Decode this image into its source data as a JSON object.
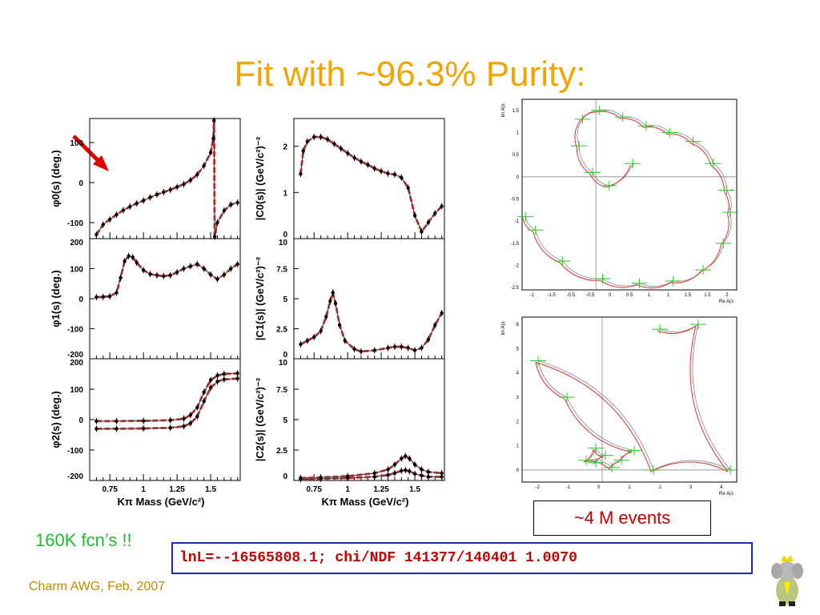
{
  "title": "Fit with ~96.3% Purity:",
  "note": "160K fcn’s !!",
  "footer": "Charm AWG, Feb, 2007",
  "result": "lnL=--16565808.1; chi/NDF 141377/140401 1.0070",
  "events": "~4 M events",
  "colors": {
    "title": "#f2a400",
    "fit": "#e03030",
    "data": "#000000",
    "argand_data": "#22cc22",
    "arrow": "#e00000"
  },
  "icons": [
    "red-arrow-icon",
    "mascot-elephant-icon"
  ],
  "chart_data": [
    {
      "type": "line",
      "panel": "phi0",
      "ylabel": "φ0(s)  (deg.)",
      "yticks": [
        "100",
        "0",
        "-100"
      ],
      "ylim": [
        -140,
        160
      ],
      "series": [
        {
          "x": [
            0.65,
            0.7,
            0.75,
            0.8,
            0.85,
            0.9,
            0.95,
            1.0,
            1.05,
            1.1,
            1.15,
            1.2,
            1.25,
            1.3,
            1.35,
            1.4,
            1.45,
            1.5,
            1.52,
            1.525,
            1.53,
            1.55,
            1.6,
            1.65,
            1.7
          ],
          "values": [
            -130,
            -105,
            -92,
            -80,
            -69,
            -60,
            -52,
            -45,
            -37,
            -30,
            -24,
            -18,
            -11,
            -4,
            6,
            20,
            42,
            75,
            110,
            155,
            -135,
            -100,
            -70,
            -55,
            -50
          ]
        }
      ]
    },
    {
      "type": "line",
      "panel": "C0",
      "ylabel": "|C0(s)|  (GeV/c²)⁻²",
      "yticks": [
        "2",
        "1",
        "0"
      ],
      "ylim": [
        0,
        2.6
      ],
      "series": [
        {
          "x": [
            0.65,
            0.67,
            0.7,
            0.75,
            0.8,
            0.85,
            0.9,
            0.95,
            1.0,
            1.05,
            1.1,
            1.15,
            1.2,
            1.25,
            1.3,
            1.35,
            1.4,
            1.45,
            1.5,
            1.55,
            1.6,
            1.65,
            1.7
          ],
          "values": [
            1.4,
            1.9,
            2.1,
            2.2,
            2.2,
            2.15,
            2.05,
            1.95,
            1.85,
            1.75,
            1.67,
            1.6,
            1.52,
            1.46,
            1.41,
            1.39,
            1.32,
            1.1,
            0.5,
            0.15,
            0.35,
            0.55,
            0.7
          ]
        }
      ]
    },
    {
      "type": "line",
      "panel": "phi1",
      "ylabel": "φ1(s)  (deg.)",
      "yticks": [
        "200",
        "100",
        "0",
        "-100",
        "-200"
      ],
      "ylim": [
        -200,
        200
      ],
      "series": [
        {
          "x": [
            0.65,
            0.7,
            0.75,
            0.8,
            0.83,
            0.86,
            0.89,
            0.92,
            0.95,
            1.0,
            1.05,
            1.1,
            1.15,
            1.2,
            1.25,
            1.3,
            1.35,
            1.4,
            1.45,
            1.5,
            1.55,
            1.6,
            1.65,
            1.7
          ],
          "values": [
            5,
            6,
            8,
            20,
            70,
            125,
            142,
            138,
            120,
            95,
            82,
            78,
            75,
            78,
            88,
            100,
            108,
            115,
            100,
            80,
            65,
            80,
            100,
            115
          ]
        }
      ]
    },
    {
      "type": "line",
      "panel": "C1",
      "ylabel": "|C1(s)|  (GeV/c²)⁻²",
      "yticks": [
        "10",
        "7.5",
        "5",
        "2.5",
        "0"
      ],
      "ylim": [
        0,
        10
      ],
      "series": [
        {
          "x": [
            0.65,
            0.7,
            0.75,
            0.8,
            0.84,
            0.87,
            0.89,
            0.91,
            0.94,
            0.98,
            1.05,
            1.1,
            1.2,
            1.3,
            1.35,
            1.4,
            1.45,
            1.5,
            1.55,
            1.6,
            1.65,
            1.7
          ],
          "values": [
            1.2,
            1.5,
            1.8,
            2.3,
            3.5,
            4.8,
            5.5,
            4.6,
            2.8,
            1.5,
            0.8,
            0.6,
            0.7,
            0.9,
            1.0,
            1.0,
            0.9,
            0.7,
            0.9,
            1.6,
            2.8,
            3.8
          ]
        }
      ]
    },
    {
      "type": "line",
      "panel": "phi2",
      "ylabel": "φ2(s)  (deg.)",
      "xlabel": "Kπ Mass (GeV/c²)",
      "yticks": [
        "200",
        "100",
        "0",
        "-100",
        "-200"
      ],
      "xticks": [
        "0.75",
        "1",
        "1.25",
        "1.5"
      ],
      "ylim": [
        -200,
        200
      ],
      "series": [
        {
          "x": [
            0.65,
            0.8,
            1.0,
            1.2,
            1.3,
            1.35,
            1.4,
            1.45,
            1.5,
            1.55,
            1.6,
            1.7
          ],
          "values": [
            -30,
            -30,
            -29,
            -27,
            -22,
            -12,
            10,
            60,
            105,
            125,
            132,
            135
          ]
        },
        {
          "x": [
            0.65,
            0.8,
            1.0,
            1.2,
            1.3,
            1.35,
            1.4,
            1.45,
            1.5,
            1.55,
            1.6,
            1.7
          ],
          "values": [
            -5,
            -5,
            -4,
            -2,
            3,
            15,
            40,
            90,
            130,
            145,
            150,
            152
          ]
        }
      ]
    },
    {
      "type": "line",
      "panel": "C2",
      "ylabel": "|C2(s)|  (GeV/c²)⁻²",
      "xlabel": "Kπ Mass (GeV/c²)",
      "yticks": [
        "10",
        "7.5",
        "5",
        "2.5",
        "0"
      ],
      "xticks": [
        "0.75",
        "1",
        "1.25",
        "1.5"
      ],
      "ylim": [
        0,
        10
      ],
      "series": [
        {
          "x": [
            0.65,
            0.8,
            1.0,
            1.2,
            1.3,
            1.35,
            1.4,
            1.43,
            1.46,
            1.5,
            1.55,
            1.6,
            1.7
          ],
          "values": [
            0.2,
            0.25,
            0.35,
            0.6,
            0.9,
            1.3,
            1.8,
            2.0,
            1.8,
            1.3,
            0.9,
            0.7,
            0.6
          ]
        },
        {
          "x": [
            0.65,
            0.8,
            1.0,
            1.2,
            1.3,
            1.35,
            1.4,
            1.43,
            1.46,
            1.5,
            1.55,
            1.6,
            1.7
          ],
          "values": [
            0.1,
            0.15,
            0.2,
            0.3,
            0.45,
            0.6,
            0.8,
            0.85,
            0.75,
            0.55,
            0.4,
            0.3,
            0.3
          ]
        }
      ]
    },
    {
      "type": "scatter",
      "panel": "argand-top",
      "ylabel": "Im A(s",
      "xlabel": "Re A(s",
      "yticks": [
        "1.5",
        "1",
        "0.5",
        "0",
        "-0.5",
        "-1",
        "-1.5",
        "-2",
        "-2.5"
      ],
      "xticks": [
        "-1",
        "-1.5",
        "-0.5",
        "-0.5",
        "0",
        "0.5",
        "1",
        "1",
        "1.5",
        "1.5",
        "2"
      ],
      "xlim": [
        -1.1,
        2.1
      ],
      "ylim": [
        -2.55,
        1.75
      ],
      "series": [
        {
          "x": [
            0.55,
            0.2,
            -0.05,
            -0.25,
            -0.2,
            0.05,
            0.4,
            0.75,
            1.1,
            1.45,
            1.75,
            1.95,
            2.0,
            1.9,
            1.6,
            1.15,
            0.65,
            0.1,
            -0.5,
            -0.9,
            -1.05
          ],
          "values": [
            0.3,
            -0.2,
            0.1,
            0.7,
            1.3,
            1.5,
            1.35,
            1.15,
            1.0,
            0.8,
            0.3,
            -0.3,
            -0.8,
            -1.5,
            -2.1,
            -2.35,
            -2.4,
            -2.3,
            -1.9,
            -1.2,
            -0.9
          ]
        }
      ]
    },
    {
      "type": "scatter",
      "panel": "argand-bottom",
      "ylabel": "Im A(s",
      "xlabel": "Re A(s",
      "yticks": [
        "6",
        "5",
        "4",
        "3",
        "2",
        "1",
        "0"
      ],
      "xticks": [
        "-2",
        "-1",
        "0",
        "1",
        "2",
        "3",
        "4"
      ],
      "xlim": [
        -2.5,
        4.2
      ],
      "ylim": [
        -0.5,
        6.3
      ],
      "series": [
        {
          "x": [
            -0.2,
            0.1,
            -0.2,
            -0.5,
            0.3,
            0.6,
            1.0,
            -1.1,
            -2.0,
            1.6,
            4.0,
            3.0,
            1.8
          ],
          "values": [
            0.3,
            0.6,
            0.9,
            0.4,
            0.1,
            0.4,
            0.8,
            3.0,
            4.5,
            0.0,
            0.0,
            6.0,
            5.8
          ]
        }
      ]
    }
  ]
}
